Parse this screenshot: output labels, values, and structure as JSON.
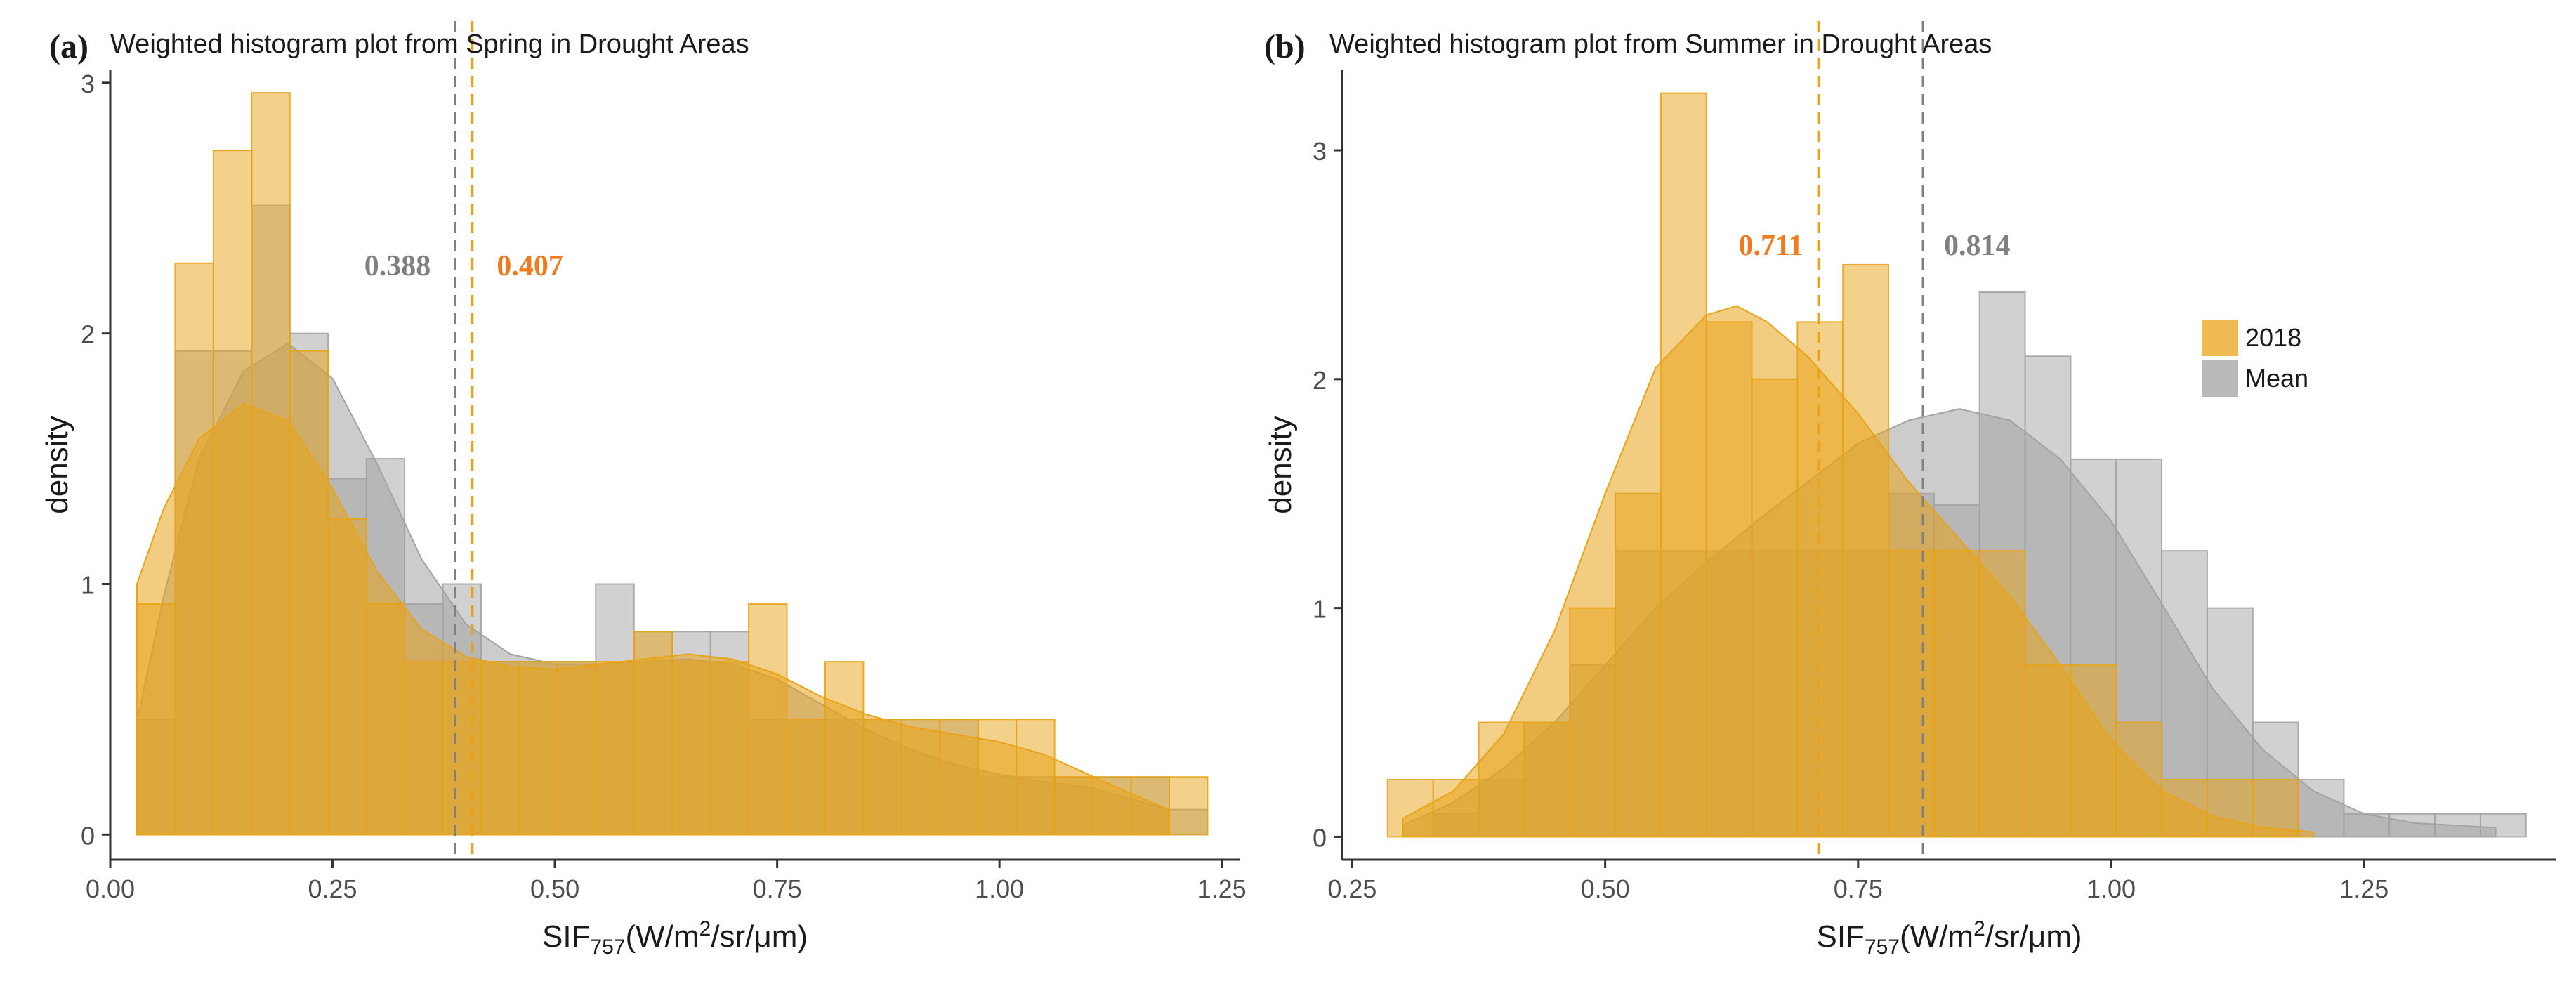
{
  "colors": {
    "orange": "#e8a317",
    "orange_label": "#f07a1e",
    "gray": "#a3a3a3",
    "gray_label": "#808080",
    "axis": "#333333"
  },
  "chart_data": [
    {
      "type": "histogram",
      "panel_label": "(a)",
      "title": "Weighted histogram plot from Spring in Drought Areas",
      "xlabel_main": "SIF",
      "xlabel_sub": "757",
      "xlabel_unit": "(W/m",
      "xlabel_sup": "2",
      "xlabel_rest": "/sr/μm)",
      "ylabel": "density",
      "xlim": [
        0.0,
        1.27
      ],
      "ylim": [
        -0.1,
        3.05
      ],
      "xticks": [
        0.0,
        0.25,
        0.5,
        0.75,
        1.0,
        1.25
      ],
      "xtick_labels": [
        "0.00",
        "0.25",
        "0.50",
        "0.75",
        "1.00",
        "1.25"
      ],
      "yticks": [
        0,
        1,
        2,
        3
      ],
      "ytick_labels": [
        "0",
        "1",
        "2",
        "3"
      ],
      "bin_width": 0.043,
      "series": [
        {
          "name": "2018",
          "color": "orange",
          "bin_left": [
            0.03,
            0.073,
            0.116,
            0.159,
            0.202,
            0.245,
            0.288,
            0.331,
            0.374,
            0.417,
            0.46,
            0.503,
            0.546,
            0.589,
            0.632,
            0.675,
            0.718,
            0.761,
            0.804,
            0.847,
            0.89,
            0.933,
            0.976,
            1.019,
            1.062,
            1.105,
            1.148,
            1.191
          ],
          "values": [
            0.92,
            2.28,
            2.73,
            2.96,
            1.93,
            1.26,
            0.92,
            0.69,
            0.69,
            0.69,
            0.69,
            0.69,
            0.69,
            0.81,
            0.69,
            0.69,
            0.92,
            0.46,
            0.69,
            0.46,
            0.46,
            0.46,
            0.46,
            0.46,
            0.23,
            0.23,
            0.23,
            0.23
          ],
          "density": [
            [
              0.03,
              1.0
            ],
            [
              0.06,
              1.3
            ],
            [
              0.1,
              1.58
            ],
            [
              0.15,
              1.72
            ],
            [
              0.2,
              1.65
            ],
            [
              0.25,
              1.38
            ],
            [
              0.3,
              1.05
            ],
            [
              0.35,
              0.82
            ],
            [
              0.4,
              0.71
            ],
            [
              0.45,
              0.67
            ],
            [
              0.5,
              0.66
            ],
            [
              0.55,
              0.68
            ],
            [
              0.6,
              0.7
            ],
            [
              0.65,
              0.72
            ],
            [
              0.7,
              0.7
            ],
            [
              0.75,
              0.64
            ],
            [
              0.8,
              0.55
            ],
            [
              0.85,
              0.48
            ],
            [
              0.9,
              0.43
            ],
            [
              0.95,
              0.4
            ],
            [
              1.0,
              0.37
            ],
            [
              1.05,
              0.32
            ],
            [
              1.1,
              0.24
            ],
            [
              1.15,
              0.16
            ],
            [
              1.19,
              0.1
            ]
          ],
          "mean": 0.407,
          "mean_label": "0.407"
        },
        {
          "name": "Mean",
          "color": "gray",
          "bin_left": [
            0.03,
            0.073,
            0.116,
            0.159,
            0.202,
            0.245,
            0.288,
            0.331,
            0.374,
            0.417,
            0.46,
            0.503,
            0.546,
            0.589,
            0.632,
            0.675,
            0.718,
            0.761,
            0.804,
            0.847,
            0.89,
            0.933,
            0.976,
            1.019,
            1.062,
            1.105,
            1.148,
            1.191
          ],
          "values": [
            0.46,
            1.93,
            1.93,
            2.51,
            2.0,
            1.42,
            1.5,
            0.92,
            1.0,
            0.69,
            0.69,
            0.69,
            1.0,
            0.81,
            0.81,
            0.81,
            0.46,
            0.46,
            0.46,
            0.46,
            0.46,
            0.46,
            0.23,
            0.23,
            0.23,
            0.23,
            0.23,
            0.1
          ],
          "density": [
            [
              0.03,
              0.45
            ],
            [
              0.06,
              0.95
            ],
            [
              0.1,
              1.5
            ],
            [
              0.15,
              1.85
            ],
            [
              0.2,
              1.96
            ],
            [
              0.25,
              1.82
            ],
            [
              0.3,
              1.48
            ],
            [
              0.35,
              1.1
            ],
            [
              0.4,
              0.84
            ],
            [
              0.45,
              0.72
            ],
            [
              0.5,
              0.68
            ],
            [
              0.55,
              0.68
            ],
            [
              0.6,
              0.69
            ],
            [
              0.65,
              0.7
            ],
            [
              0.7,
              0.68
            ],
            [
              0.75,
              0.62
            ],
            [
              0.8,
              0.52
            ],
            [
              0.85,
              0.42
            ],
            [
              0.9,
              0.34
            ],
            [
              0.95,
              0.28
            ],
            [
              1.0,
              0.24
            ],
            [
              1.05,
              0.21
            ],
            [
              1.1,
              0.19
            ],
            [
              1.15,
              0.14
            ],
            [
              1.19,
              0.1
            ]
          ],
          "mean": 0.388,
          "mean_label": "0.388"
        }
      ],
      "legend": false
    },
    {
      "type": "histogram",
      "panel_label": "(b)",
      "title": "Weighted histogram plot from Summer in Drought Areas",
      "xlabel_main": "SIF",
      "xlabel_sub": "757",
      "xlabel_unit": "(W/m",
      "xlabel_sup": "2",
      "xlabel_rest": "/sr/μm)",
      "ylabel": "density",
      "xlim": [
        0.24,
        1.44
      ],
      "ylim": [
        -0.1,
        3.35
      ],
      "xticks": [
        0.25,
        0.5,
        0.75,
        1.0,
        1.25
      ],
      "xtick_labels": [
        "0.25",
        "0.50",
        "0.75",
        "1.00",
        "1.25"
      ],
      "yticks": [
        0,
        1,
        2,
        3
      ],
      "ytick_labels": [
        "0",
        "1",
        "2",
        "3"
      ],
      "bin_width": 0.045,
      "series": [
        {
          "name": "2018",
          "color": "orange",
          "bin_left": [
            0.285,
            0.33,
            0.375,
            0.42,
            0.465,
            0.51,
            0.555,
            0.6,
            0.645,
            0.69,
            0.735,
            0.78,
            0.825,
            0.87,
            0.915,
            0.96,
            1.005,
            1.05,
            1.095,
            1.14,
            1.185,
            1.23,
            1.275,
            1.32,
            1.365
          ],
          "values": [
            0.25,
            0.25,
            0.5,
            0.5,
            1.0,
            1.5,
            3.25,
            2.25,
            2.0,
            2.25,
            2.5,
            1.25,
            1.25,
            1.25,
            0.75,
            0.75,
            0.5,
            0.25,
            0.25,
            0.25,
            0.0,
            0.0,
            0.0,
            0.0,
            0.0
          ],
          "density": [
            [
              0.3,
              0.08
            ],
            [
              0.35,
              0.2
            ],
            [
              0.4,
              0.45
            ],
            [
              0.45,
              0.9
            ],
            [
              0.5,
              1.5
            ],
            [
              0.55,
              2.05
            ],
            [
              0.6,
              2.28
            ],
            [
              0.63,
              2.32
            ],
            [
              0.66,
              2.25
            ],
            [
              0.7,
              2.1
            ],
            [
              0.75,
              1.85
            ],
            [
              0.8,
              1.55
            ],
            [
              0.85,
              1.3
            ],
            [
              0.9,
              1.05
            ],
            [
              0.95,
              0.75
            ],
            [
              1.0,
              0.42
            ],
            [
              1.05,
              0.2
            ],
            [
              1.1,
              0.09
            ],
            [
              1.15,
              0.04
            ],
            [
              1.2,
              0.02
            ]
          ],
          "mean": 0.711,
          "mean_label": "0.711"
        },
        {
          "name": "Mean",
          "color": "gray",
          "bin_left": [
            0.285,
            0.33,
            0.375,
            0.42,
            0.465,
            0.51,
            0.555,
            0.6,
            0.645,
            0.69,
            0.735,
            0.78,
            0.825,
            0.87,
            0.915,
            0.96,
            1.005,
            1.05,
            1.095,
            1.14,
            1.185,
            1.23,
            1.275,
            1.32,
            1.365
          ],
          "values": [
            0.0,
            0.1,
            0.25,
            0.5,
            0.75,
            1.25,
            1.25,
            1.25,
            1.25,
            1.25,
            1.25,
            1.5,
            1.45,
            2.38,
            2.1,
            1.65,
            1.65,
            1.25,
            1.0,
            0.5,
            0.25,
            0.1,
            0.1,
            0.1,
            0.1
          ],
          "density": [
            [
              0.3,
              0.05
            ],
            [
              0.35,
              0.15
            ],
            [
              0.4,
              0.3
            ],
            [
              0.45,
              0.5
            ],
            [
              0.5,
              0.75
            ],
            [
              0.55,
              1.0
            ],
            [
              0.6,
              1.2
            ],
            [
              0.65,
              1.38
            ],
            [
              0.7,
              1.55
            ],
            [
              0.75,
              1.72
            ],
            [
              0.8,
              1.82
            ],
            [
              0.85,
              1.87
            ],
            [
              0.9,
              1.82
            ],
            [
              0.95,
              1.65
            ],
            [
              1.0,
              1.38
            ],
            [
              1.05,
              1.02
            ],
            [
              1.1,
              0.65
            ],
            [
              1.15,
              0.38
            ],
            [
              1.2,
              0.2
            ],
            [
              1.25,
              0.1
            ],
            [
              1.3,
              0.06
            ],
            [
              1.38,
              0.04
            ]
          ],
          "mean": 0.814,
          "mean_label": "0.814"
        }
      ],
      "legend": true,
      "legend_position": "right",
      "legend_entries": [
        "2018",
        "Mean"
      ]
    }
  ]
}
